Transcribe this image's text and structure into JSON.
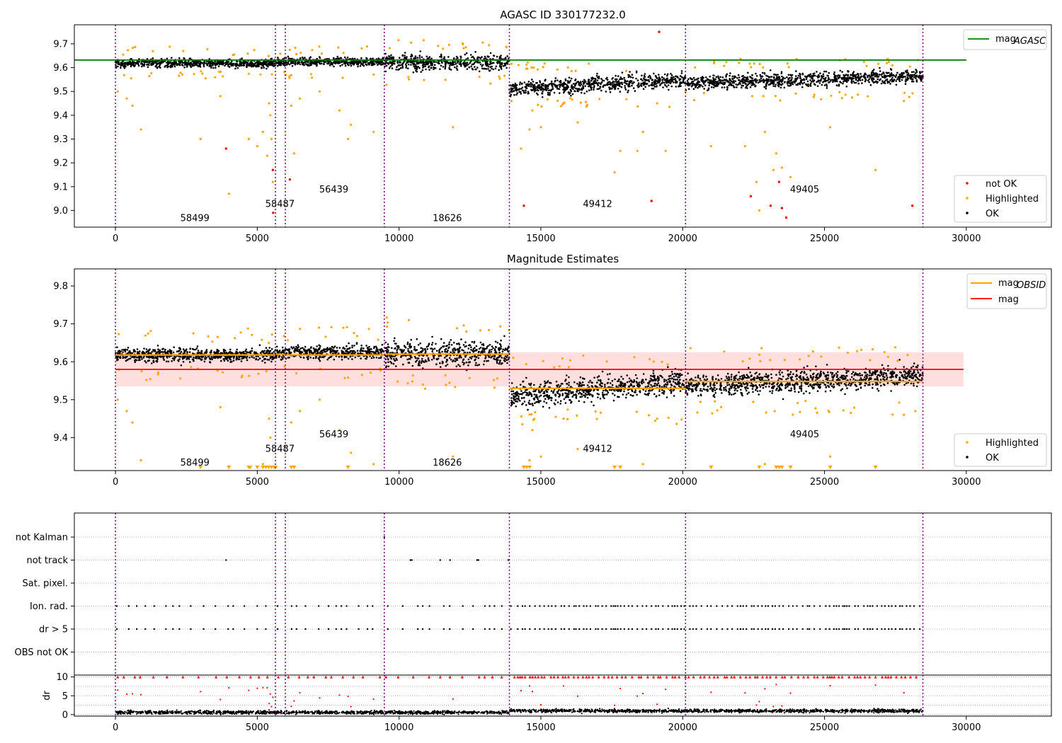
{
  "chart_data": [
    {
      "type": "scatter",
      "title": "AGASC ID 330177232.0",
      "xlim": [
        -1450,
        33000
      ],
      "ylim": [
        8.93,
        9.78
      ],
      "x_ticks": [
        0,
        5000,
        10000,
        15000,
        20000,
        25000,
        30000
      ],
      "y_ticks": [
        9.0,
        9.1,
        9.2,
        9.3,
        9.4,
        9.5,
        9.6,
        9.7
      ],
      "grid": false,
      "legend_position": "top-right / bottom-right",
      "legend_top": [
        {
          "label": "mag",
          "sub": "AGASC",
          "color": "#008000"
        }
      ],
      "legend_bottom": [
        {
          "label": "not OK",
          "color": "#ff0000"
        },
        {
          "label": "Highlighted",
          "color": "#ffa500"
        },
        {
          "label": "OK",
          "color": "#000000"
        }
      ],
      "agasc_mag": 9.632,
      "agasc_line_x": [
        -1450,
        30000
      ],
      "obsid_boundaries": [
        0,
        5640,
        5990,
        9480,
        13890,
        20100,
        28470
      ],
      "segments": [
        {
          "x0": 0,
          "x1": 5640,
          "level": 9.618,
          "spread": 0.012
        },
        {
          "x0": 5640,
          "x1": 5990,
          "level": 9.623,
          "spread": 0.012
        },
        {
          "x0": 5990,
          "x1": 9480,
          "level": 9.625,
          "spread": 0.012
        },
        {
          "x0": 9480,
          "x1": 13890,
          "level": 9.622,
          "spread": 0.022
        },
        {
          "x0": 13890,
          "x1": 20100,
          "level": 9.53,
          "spread": 0.022
        },
        {
          "x0": 20100,
          "x1": 28470,
          "level": 9.55,
          "spread": 0.02
        }
      ],
      "obsid_labels": [
        {
          "text": "58499",
          "x": 2800,
          "y": 8.97
        },
        {
          "text": "58487",
          "x": 5800,
          "y": 9.03
        },
        {
          "text": "56439",
          "x": 7700,
          "y": 9.09
        },
        {
          "text": "18626",
          "x": 11700,
          "y": 8.97
        },
        {
          "text": "49412",
          "x": 17000,
          "y": 9.03
        },
        {
          "text": "49405",
          "x": 24300,
          "y": 9.09
        }
      ],
      "not_ok_points": [
        [
          3900,
          9.26
        ],
        [
          5550,
          9.17
        ],
        [
          5560,
          8.99
        ],
        [
          6150,
          9.13
        ],
        [
          14400,
          9.02
        ],
        [
          18900,
          9.04
        ],
        [
          19170,
          9.75
        ],
        [
          22400,
          9.06
        ],
        [
          23100,
          9.02
        ],
        [
          23400,
          9.12
        ],
        [
          23500,
          9.01
        ],
        [
          23650,
          8.97
        ],
        [
          28100,
          9.02
        ]
      ],
      "highlighted_points": [
        [
          80,
          9.5
        ],
        [
          400,
          9.47
        ],
        [
          600,
          9.44
        ],
        [
          900,
          9.34
        ],
        [
          3000,
          9.3
        ],
        [
          3700,
          9.48
        ],
        [
          4000,
          9.07
        ],
        [
          4700,
          9.3
        ],
        [
          5000,
          9.27
        ],
        [
          5200,
          9.33
        ],
        [
          5350,
          9.23
        ],
        [
          5420,
          9.45
        ],
        [
          5460,
          9.4
        ],
        [
          5500,
          9.3
        ],
        [
          5550,
          9.12
        ],
        [
          6200,
          9.44
        ],
        [
          6300,
          9.24
        ],
        [
          6500,
          9.47
        ],
        [
          7200,
          9.5
        ],
        [
          7900,
          9.42
        ],
        [
          8300,
          9.36
        ],
        [
          8200,
          9.3
        ],
        [
          9100,
          9.33
        ],
        [
          11900,
          9.35
        ],
        [
          14300,
          9.26
        ],
        [
          14600,
          9.34
        ],
        [
          14700,
          9.42
        ],
        [
          15000,
          9.35
        ],
        [
          15800,
          9.45
        ],
        [
          16300,
          9.37
        ],
        [
          17600,
          9.16
        ],
        [
          17800,
          9.25
        ],
        [
          18400,
          9.25
        ],
        [
          18600,
          9.33
        ],
        [
          19100,
          9.45
        ],
        [
          19400,
          9.25
        ],
        [
          21000,
          9.27
        ],
        [
          22200,
          9.27
        ],
        [
          22600,
          9.12
        ],
        [
          22700,
          9.0
        ],
        [
          22900,
          9.33
        ],
        [
          23200,
          9.17
        ],
        [
          23300,
          9.24
        ],
        [
          23500,
          9.18
        ],
        [
          23800,
          9.14
        ],
        [
          25200,
          9.35
        ],
        [
          26800,
          9.17
        ],
        [
          27800,
          9.46
        ]
      ],
      "ok_point_count": "dense"
    },
    {
      "type": "scatter",
      "title": "Magnitude Estimates",
      "xlim": [
        -1450,
        33000
      ],
      "ylim": [
        9.313,
        9.845
      ],
      "x_ticks": [
        0,
        5000,
        10000,
        15000,
        20000,
        25000,
        30000
      ],
      "y_ticks": [
        9.4,
        9.5,
        9.6,
        9.7,
        9.8
      ],
      "grid": false,
      "legend_top": [
        {
          "label": "mag",
          "sub": "OBSID",
          "color": "#ffa500"
        },
        {
          "label": "mag",
          "color": "#ff0000"
        }
      ],
      "legend_bottom": [
        {
          "label": "Highlighted",
          "color": "#ffa500"
        },
        {
          "label": "OK",
          "color": "#000000"
        }
      ],
      "mag": 9.58,
      "mag_band": [
        9.535,
        9.625
      ],
      "mag_line_x": [
        0,
        29900
      ],
      "obsid_mags": [
        {
          "x0": 0,
          "x1": 5640,
          "mag": 9.618
        },
        {
          "x0": 5640,
          "x1": 5990,
          "mag": 9.62
        },
        {
          "x0": 5990,
          "x1": 9480,
          "mag": 9.618
        },
        {
          "x0": 9480,
          "x1": 13890,
          "mag": 9.62
        },
        {
          "x0": 13890,
          "x1": 20100,
          "mag": 9.53
        },
        {
          "x0": 20100,
          "x1": 28470,
          "mag": 9.548
        }
      ],
      "obsid_labels": [
        {
          "text": "58499",
          "x": 2800,
          "y": 9.335
        },
        {
          "text": "58487",
          "x": 5800,
          "y": 9.372
        },
        {
          "text": "56439",
          "x": 7700,
          "y": 9.41
        },
        {
          "text": "18626",
          "x": 11700,
          "y": 9.335
        },
        {
          "text": "49412",
          "x": 17000,
          "y": 9.372
        },
        {
          "text": "49405",
          "x": 24300,
          "y": 9.41
        }
      ],
      "clipped_markers_x": [
        3000,
        4000,
        4700,
        4750,
        5000,
        5200,
        5300,
        5400,
        5500,
        5600,
        5650,
        6200,
        6300,
        8200,
        14400,
        14500,
        14600,
        17600,
        17800,
        21000,
        22700,
        23300,
        23400,
        23500,
        23800,
        25200,
        26800
      ]
    },
    {
      "type": "scatter",
      "title": "",
      "xlim": [
        -1450,
        33000
      ],
      "categories": [
        "not Kalman",
        "not track",
        "Sat. pixel.",
        "Ion. rad.",
        "dr > 5",
        "OBS not OK"
      ],
      "flag_points": {
        "not Kalman": [
          9480
        ],
        "not track": [
          3900,
          10400,
          10450,
          11450,
          11800,
          12750,
          12800,
          13850
        ],
        "Sat. pixel.": [],
        "Ion. rad.": "frequent",
        "dr > 5": "frequent",
        "OBS not OK": []
      }
    },
    {
      "type": "scatter",
      "title": "",
      "xlim": [
        -1450,
        33000
      ],
      "ylim": [
        -0.4,
        10.5
      ],
      "x_ticks": [
        0,
        5000,
        10000,
        15000,
        20000,
        25000,
        30000
      ],
      "y_ticks": [
        0,
        5,
        10
      ],
      "ylabel": "dr",
      "capped_at": 10
    }
  ],
  "labels": {
    "title1": "AGASC ID 330177232.0",
    "title2": "Magnitude Estimates",
    "ylabel4": "dr"
  }
}
